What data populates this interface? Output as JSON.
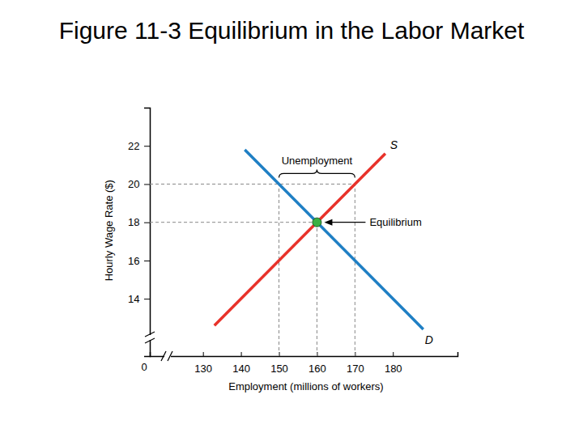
{
  "chart_data": {
    "type": "line",
    "title": "Figure 11-3  Equilibrium in the Labor Market",
    "x_label": "Employment (millions of workers)",
    "y_label": "Hourly Wage Rate ($)",
    "origin_label": "0",
    "xlim": [
      116,
      197
    ],
    "xticks": [
      130,
      140,
      150,
      160,
      170,
      180
    ],
    "ylim": [
      11,
      24
    ],
    "yticks": [
      14,
      16,
      18,
      20,
      22
    ],
    "grid": false,
    "series": [
      {
        "name": "S",
        "color": "#e8322a",
        "x": [
          133,
          178
        ],
        "values": [
          12.6,
          21.6
        ]
      },
      {
        "name": "D",
        "color": "#1f7fc4",
        "x": [
          141,
          188
        ],
        "values": [
          21.8,
          12.4
        ]
      }
    ],
    "equilibrium": {
      "x": 160,
      "y": 18,
      "label": "Equilibrium"
    },
    "unemployment": {
      "wage": 20,
      "from": 150,
      "to": 170,
      "label": "Unemployment"
    }
  }
}
